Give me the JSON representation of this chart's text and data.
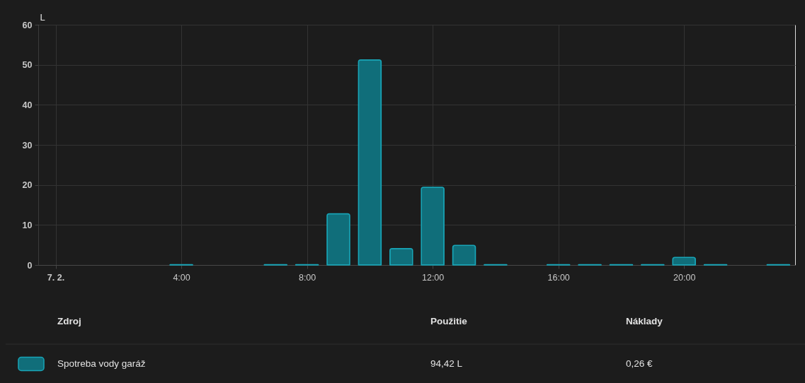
{
  "chart_data": {
    "type": "bar",
    "x": [
      4,
      7,
      8,
      9,
      10,
      11,
      12,
      13,
      14,
      16,
      17,
      18,
      19,
      20,
      21,
      23
    ],
    "series": [
      {
        "name": "Spotreba vody garáž",
        "color": "#106e7a",
        "values": [
          0.1,
          0.1,
          0.1,
          12.8,
          51.2,
          4.1,
          19.4,
          4.9,
          0.1,
          0.1,
          0.1,
          0.1,
          0.1,
          1.9,
          0.1,
          0.1
        ]
      }
    ],
    "ylabel": "L",
    "xlim": [
      -0.44,
      23.42
    ],
    "xticks": [
      {
        "value": 0,
        "label": "7. 2."
      },
      {
        "value": 4,
        "label": "4:00"
      },
      {
        "value": 8,
        "label": "8:00"
      },
      {
        "value": 12,
        "label": "12:00"
      },
      {
        "value": 16,
        "label": "16:00"
      },
      {
        "value": 20,
        "label": "20:00"
      }
    ],
    "ylim": [
      0,
      60
    ],
    "yticks": [
      0,
      10,
      20,
      30,
      40,
      50,
      60
    ],
    "grid": true,
    "legend": "bottom left",
    "annotations": [
      "Zdroj",
      "Použitie",
      "Náklady",
      "94,42 L",
      "0,26 €"
    ]
  }
}
